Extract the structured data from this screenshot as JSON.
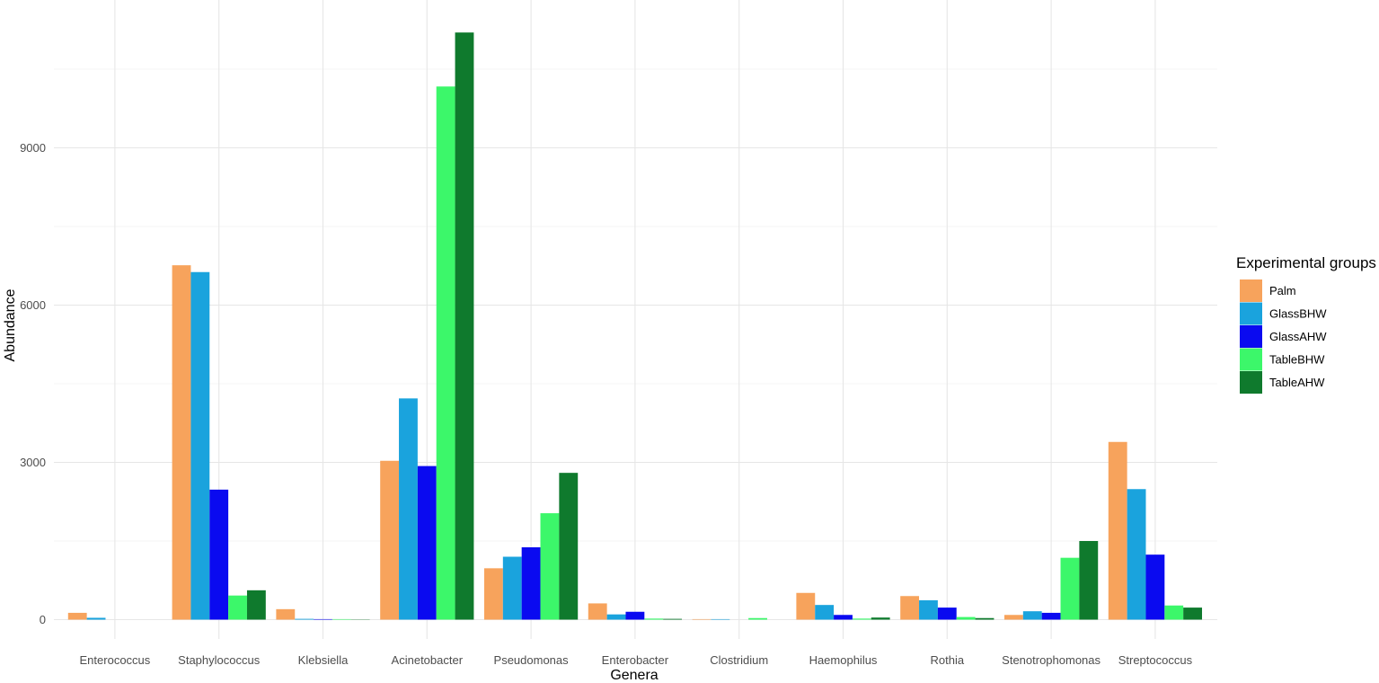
{
  "chart_data": {
    "type": "bar",
    "xlabel": "Genera",
    "ylabel": "Abundance",
    "ylim": [
      -500,
      12000
    ],
    "yticks": [
      0,
      3000,
      6000,
      9000
    ],
    "grid": true,
    "legend": {
      "title": "Experimental groups",
      "position": "right"
    },
    "categories": [
      "Enterococcus",
      "Staphylococcus",
      "Klebsiella",
      "Acinetobacter",
      "Pseudomonas",
      "Enterobacter",
      "Clostridium",
      "Haemophilus",
      "Rothia",
      "Stenotrophomonas",
      "Streptococcus"
    ],
    "series": [
      {
        "name": "Palm",
        "color": "#F7A35C",
        "values": [
          130,
          6760,
          200,
          3030,
          980,
          310,
          10,
          510,
          450,
          90,
          3390
        ]
      },
      {
        "name": "GlassBHW",
        "color": "#1AA3DD",
        "values": [
          35,
          6630,
          15,
          4220,
          1200,
          100,
          10,
          280,
          370,
          160,
          2490
        ]
      },
      {
        "name": "GlassAHW",
        "color": "#0A0AF0",
        "values": [
          0,
          2480,
          10,
          2930,
          1380,
          150,
          0,
          90,
          230,
          130,
          1240
        ]
      },
      {
        "name": "TableBHW",
        "color": "#3CF76A",
        "values": [
          0,
          460,
          10,
          10170,
          2030,
          20,
          30,
          20,
          50,
          1180,
          270
        ]
      },
      {
        "name": "TableAHW",
        "color": "#0F7A2D",
        "values": [
          0,
          560,
          5,
          11200,
          2800,
          15,
          0,
          40,
          30,
          1500,
          230
        ]
      }
    ]
  }
}
